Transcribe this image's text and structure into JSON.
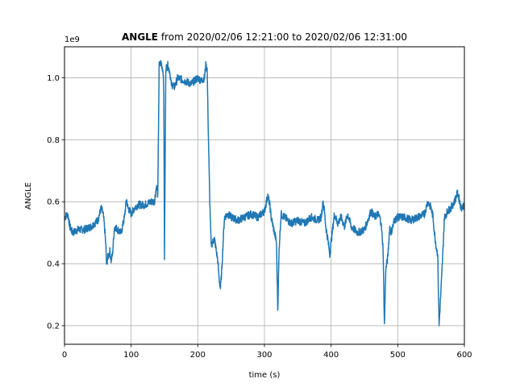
{
  "chart_data": {
    "type": "line",
    "title_bold": "ANGLE",
    "title_rest": " from 2020/02/06 12:21:00 to 2020/02/06 12:31:00",
    "xlabel": "time (s)",
    "ylabel": "ANGLE",
    "y_offset_label": "1e9",
    "xlim": [
      0,
      600
    ],
    "ylim": [
      0.14,
      1.1
    ],
    "x_ticks": [
      0,
      100,
      200,
      300,
      400,
      500,
      600
    ],
    "x_tick_labels": [
      "0",
      "100",
      "200",
      "300",
      "400",
      "500",
      "600"
    ],
    "y_ticks": [
      0.2,
      0.4,
      0.6,
      0.8,
      1.0
    ],
    "y_tick_labels": [
      "0.2",
      "0.4",
      "0.6",
      "0.8",
      "1.0"
    ],
    "grid": true,
    "line_color": "#1f77b4",
    "series": [
      {
        "x": [
          0,
          5,
          8,
          12,
          20,
          30,
          40,
          50,
          55,
          58,
          60,
          62,
          63,
          65,
          68,
          70,
          72,
          75,
          80,
          85,
          90,
          93,
          95,
          98,
          100,
          105,
          110,
          120,
          130,
          135,
          138,
          140,
          142,
          145,
          148,
          149,
          150,
          152,
          155,
          158,
          160,
          165,
          170,
          180,
          190,
          195,
          200,
          205,
          210,
          212,
          214,
          216,
          218,
          220,
          225,
          230,
          232,
          234,
          236,
          238,
          240,
          245,
          250,
          260,
          270,
          280,
          290,
          300,
          305,
          308,
          310,
          315,
          318,
          320,
          322,
          325,
          330,
          340,
          350,
          360,
          370,
          380,
          385,
          388,
          390,
          392,
          395,
          398,
          400,
          405,
          410,
          415,
          420,
          425,
          430,
          440,
          450,
          460,
          465,
          470,
          473,
          475,
          478,
          480,
          482,
          485,
          488,
          490,
          495,
          500,
          510,
          520,
          530,
          540,
          545,
          550,
          553,
          555,
          558,
          560,
          562,
          564,
          566,
          568,
          570,
          575,
          580,
          585,
          590,
          595,
          600
        ],
        "y": [
          0.55,
          0.56,
          0.52,
          0.5,
          0.51,
          0.51,
          0.52,
          0.54,
          0.58,
          0.56,
          0.52,
          0.46,
          0.4,
          0.42,
          0.44,
          0.41,
          0.43,
          0.52,
          0.51,
          0.5,
          0.55,
          0.61,
          0.58,
          0.57,
          0.56,
          0.58,
          0.59,
          0.59,
          0.6,
          0.6,
          0.65,
          0.62,
          1.04,
          1.05,
          1.02,
          0.95,
          0.42,
          1.03,
          1.04,
          1.02,
          0.98,
          0.97,
          1.0,
          0.99,
          0.98,
          0.99,
          1.0,
          0.99,
          1.0,
          1.04,
          1.03,
          0.8,
          0.6,
          0.46,
          0.48,
          0.41,
          0.35,
          0.32,
          0.38,
          0.47,
          0.55,
          0.56,
          0.55,
          0.54,
          0.55,
          0.56,
          0.55,
          0.57,
          0.62,
          0.59,
          0.55,
          0.5,
          0.47,
          0.25,
          0.45,
          0.56,
          0.55,
          0.53,
          0.54,
          0.53,
          0.55,
          0.54,
          0.55,
          0.6,
          0.57,
          0.52,
          0.48,
          0.43,
          0.47,
          0.56,
          0.53,
          0.55,
          0.52,
          0.56,
          0.52,
          0.5,
          0.51,
          0.57,
          0.55,
          0.56,
          0.55,
          0.53,
          0.45,
          0.2,
          0.38,
          0.42,
          0.52,
          0.5,
          0.54,
          0.55,
          0.55,
          0.54,
          0.55,
          0.56,
          0.6,
          0.58,
          0.55,
          0.5,
          0.45,
          0.43,
          0.2,
          0.28,
          0.36,
          0.45,
          0.55,
          0.57,
          0.58,
          0.6,
          0.63,
          0.58,
          0.59
        ]
      }
    ]
  }
}
